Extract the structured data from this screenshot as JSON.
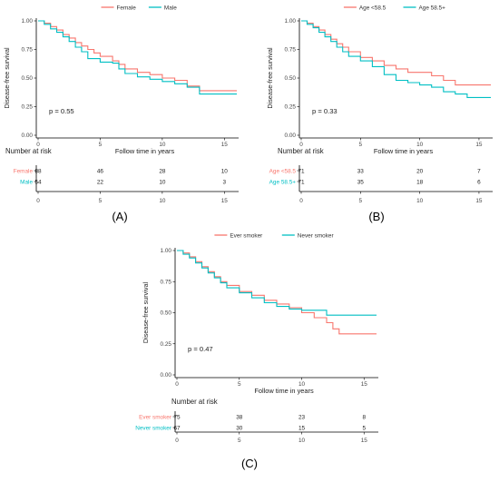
{
  "panels_label": [
    "(A)",
    "(B)",
    "(C)"
  ],
  "chart_data": [
    {
      "type": "line",
      "panel": "(A)",
      "ylabel": "Disease-free survival",
      "xlabel": "Follow time in years",
      "ylim": [
        0,
        1
      ],
      "xlim": [
        0,
        16
      ],
      "y_ticks": [
        "0.00",
        "0.25",
        "0.50",
        "0.75",
        "1.00"
      ],
      "x_ticks": [
        "0",
        "5",
        "10",
        "15"
      ],
      "pvalue": "p = 0.55",
      "legend_position": "top",
      "series": [
        {
          "name": "Female",
          "color": "#F8766D",
          "x": [
            0,
            0.5,
            1,
            1.5,
            2,
            2.5,
            3,
            3.5,
            4,
            4.5,
            5,
            6,
            6.5,
            7,
            8,
            9,
            10,
            11,
            12,
            13,
            16
          ],
          "y": [
            1.0,
            0.98,
            0.95,
            0.92,
            0.88,
            0.85,
            0.81,
            0.78,
            0.75,
            0.72,
            0.69,
            0.65,
            0.62,
            0.58,
            0.55,
            0.53,
            0.5,
            0.48,
            0.43,
            0.39,
            0.39
          ]
        },
        {
          "name": "Male",
          "color": "#00BFC4",
          "x": [
            0,
            0.5,
            1,
            1.5,
            2,
            2.5,
            3,
            3.5,
            4,
            5,
            6,
            6.5,
            7,
            8,
            9,
            10,
            11,
            12,
            13,
            16
          ],
          "y": [
            1.0,
            0.97,
            0.93,
            0.9,
            0.86,
            0.82,
            0.77,
            0.73,
            0.67,
            0.64,
            0.63,
            0.58,
            0.54,
            0.51,
            0.49,
            0.47,
            0.45,
            0.42,
            0.36,
            0.36
          ]
        }
      ],
      "risk_table": {
        "title": "Number at risk",
        "times": [
          "0",
          "5",
          "10",
          "15"
        ],
        "rows": [
          {
            "label": "Female",
            "color": "#F8766D",
            "values": [
              "88",
              "46",
              "28",
              "10"
            ]
          },
          {
            "label": "Male",
            "color": "#00BFC4",
            "values": [
              "54",
              "22",
              "10",
              "3"
            ]
          }
        ]
      }
    },
    {
      "type": "line",
      "panel": "(B)",
      "ylabel": "Disease-free survival",
      "xlabel": "Follow time in years",
      "ylim": [
        0,
        1
      ],
      "xlim": [
        0,
        16
      ],
      "y_ticks": [
        "0.00",
        "0.25",
        "0.50",
        "0.75",
        "1.00"
      ],
      "x_ticks": [
        "0",
        "5",
        "10",
        "15"
      ],
      "pvalue": "p = 0.33",
      "legend_position": "top",
      "series": [
        {
          "name": "Age <58.5",
          "color": "#F8766D",
          "x": [
            0,
            0.5,
            1,
            1.5,
            2,
            2.5,
            3,
            3.5,
            4,
            5,
            6,
            7,
            8,
            9,
            10,
            11,
            12,
            13,
            16
          ],
          "y": [
            1.0,
            0.98,
            0.95,
            0.92,
            0.88,
            0.84,
            0.8,
            0.77,
            0.73,
            0.68,
            0.65,
            0.61,
            0.58,
            0.55,
            0.55,
            0.52,
            0.48,
            0.44,
            0.44
          ]
        },
        {
          "name": "Age 58.5+",
          "color": "#00BFC4",
          "x": [
            0,
            0.5,
            1,
            1.5,
            2,
            2.5,
            3,
            3.5,
            4,
            5,
            6,
            7,
            8,
            9,
            10,
            11,
            12,
            13,
            14,
            16
          ],
          "y": [
            1.0,
            0.97,
            0.94,
            0.9,
            0.86,
            0.82,
            0.77,
            0.73,
            0.69,
            0.65,
            0.6,
            0.53,
            0.48,
            0.46,
            0.44,
            0.42,
            0.38,
            0.36,
            0.33,
            0.33
          ]
        }
      ],
      "risk_table": {
        "title": "Number at risk",
        "times": [
          "0",
          "5",
          "10",
          "15"
        ],
        "rows": [
          {
            "label": "Age <58.5",
            "color": "#F8766D",
            "values": [
              "71",
              "33",
              "20",
              "7"
            ]
          },
          {
            "label": "Age 58.5+",
            "color": "#00BFC4",
            "values": [
              "71",
              "35",
              "18",
              "6"
            ]
          }
        ]
      }
    },
    {
      "type": "line",
      "panel": "(C)",
      "ylabel": "Disease-free survival",
      "xlabel": "Follow time in years",
      "ylim": [
        0,
        1
      ],
      "xlim": [
        0,
        16
      ],
      "y_ticks": [
        "0.00",
        "0.25",
        "0.50",
        "0.75",
        "1.00"
      ],
      "x_ticks": [
        "0",
        "5",
        "10",
        "15"
      ],
      "pvalue": "p = 0.47",
      "legend_position": "top",
      "series": [
        {
          "name": "Ever smoker",
          "color": "#F8766D",
          "x": [
            0,
            0.5,
            1,
            1.5,
            2,
            2.5,
            3,
            3.5,
            4,
            5,
            6,
            7,
            8,
            9,
            10,
            11,
            12,
            12.5,
            13,
            16
          ],
          "y": [
            1.0,
            0.98,
            0.95,
            0.91,
            0.87,
            0.83,
            0.79,
            0.75,
            0.72,
            0.67,
            0.64,
            0.6,
            0.57,
            0.54,
            0.5,
            0.46,
            0.42,
            0.37,
            0.33,
            0.33
          ]
        },
        {
          "name": "Never smoker",
          "color": "#00BFC4",
          "x": [
            0,
            0.5,
            1,
            1.5,
            2,
            2.5,
            3,
            3.5,
            4,
            5,
            6,
            7,
            8,
            9,
            10,
            11,
            12,
            16
          ],
          "y": [
            1.0,
            0.97,
            0.94,
            0.9,
            0.86,
            0.82,
            0.78,
            0.74,
            0.7,
            0.66,
            0.62,
            0.58,
            0.55,
            0.53,
            0.52,
            0.52,
            0.48,
            0.48
          ]
        }
      ],
      "risk_table": {
        "title": "Number at risk",
        "times": [
          "0",
          "5",
          "10",
          "15"
        ],
        "rows": [
          {
            "label": "Ever smoker",
            "color": "#F8766D",
            "values": [
              "75",
              "38",
              "23",
              "8"
            ]
          },
          {
            "label": "Never smoker",
            "color": "#00BFC4",
            "values": [
              "67",
              "30",
              "15",
              "5"
            ]
          }
        ]
      }
    }
  ]
}
